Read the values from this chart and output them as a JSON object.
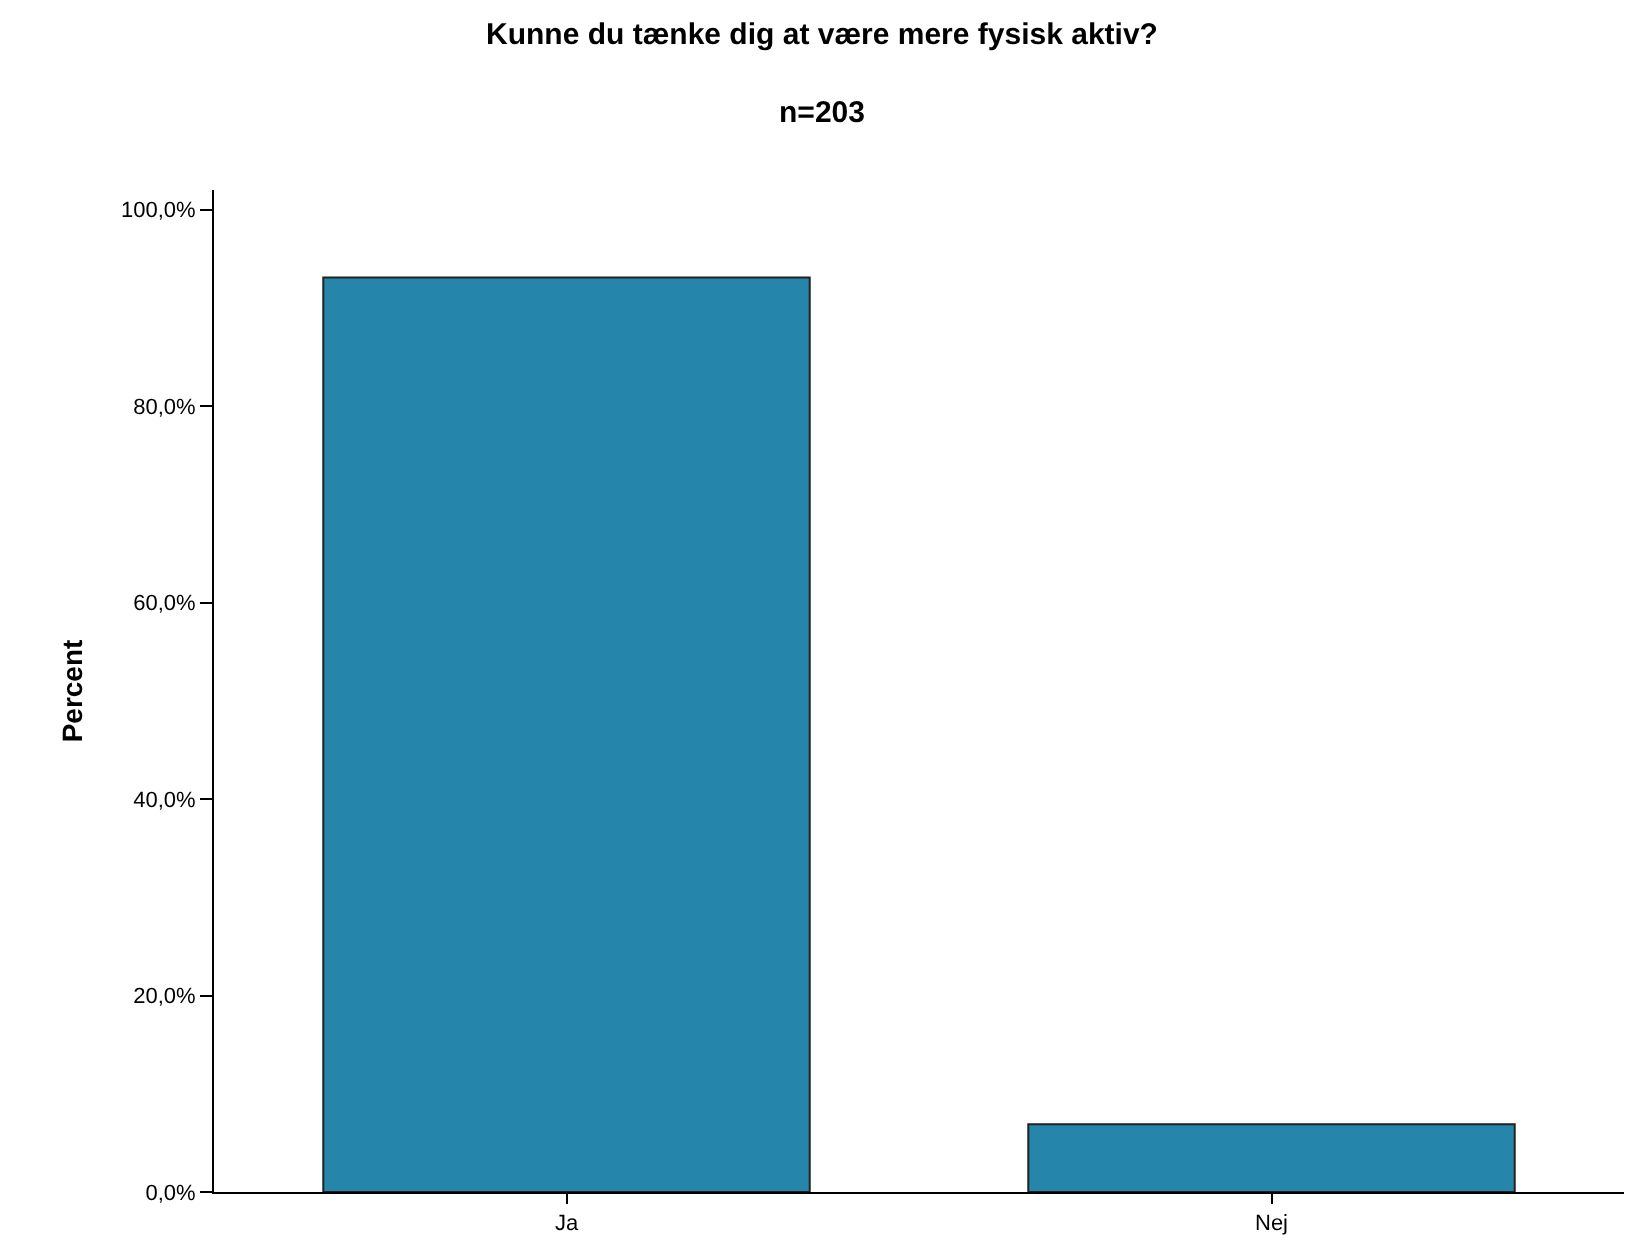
{
  "chart_data": {
    "type": "bar",
    "title": "Kunne du tænke dig at være mere fysisk aktiv?",
    "subtitle": "n=203",
    "ylabel": "Percent",
    "categories": [
      "Ja",
      "Nej"
    ],
    "series": [
      {
        "color": "#2685aa",
        "values": [
          93.1,
          6.9
        ]
      }
    ],
    "ylim": [
      0,
      102
    ],
    "yticks": [
      {
        "value": 0,
        "label": "0,0%"
      },
      {
        "value": 20,
        "label": "20,0%"
      },
      {
        "value": 40,
        "label": "40,0%"
      },
      {
        "value": 60,
        "label": "60,0%"
      },
      {
        "value": 80,
        "label": "80,0%"
      },
      {
        "value": 100,
        "label": "100,0%"
      }
    ]
  }
}
